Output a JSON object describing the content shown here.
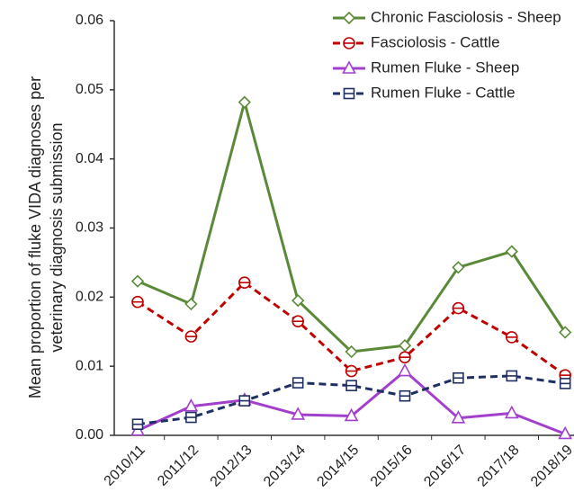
{
  "chart_data": {
    "type": "line",
    "ylabel": [
      "Mean proportion  of fluke VIDA diagnoses per",
      "veterinary diagnosis submission"
    ],
    "categories": [
      "2010/11",
      "2011/12",
      "2012/13",
      "2013/14",
      "2014/15",
      "2015/16",
      "2016/17",
      "2017/18",
      "2018/19"
    ],
    "series": [
      {
        "name": "Chronic Fasciolosis - Sheep",
        "color": "#5a8a37",
        "marker": "diamond",
        "dashed": false,
        "values": [
          0.0223,
          0.019,
          0.0482,
          0.0195,
          0.0121,
          0.013,
          0.0243,
          0.0266,
          0.0149
        ]
      },
      {
        "name": "Fasciolosis - Cattle",
        "color": "#c00000",
        "marker": "circle",
        "dashed": true,
        "values": [
          0.0193,
          0.0143,
          0.0221,
          0.0165,
          0.0093,
          0.0113,
          0.0184,
          0.0142,
          0.0087
        ]
      },
      {
        "name": "Rumen Fluke - Sheep",
        "color": "#a23fcc",
        "marker": "triangle",
        "dashed": false,
        "values": [
          0.0007,
          0.0042,
          0.0051,
          0.003,
          0.0028,
          0.0093,
          0.0025,
          0.0032,
          0.0002
        ]
      },
      {
        "name": "Rumen Fluke - Cattle",
        "color": "#1f2f63",
        "marker": "square",
        "dashed": true,
        "values": [
          0.0016,
          0.0026,
          0.005,
          0.0076,
          0.0072,
          0.0057,
          0.0083,
          0.0086,
          0.0075
        ]
      }
    ],
    "ylim": [
      0,
      0.06
    ],
    "yticks": [
      {
        "value": 0,
        "label": "0.00"
      },
      0.01,
      0.02,
      0.03,
      0.04,
      0.05,
      0.06
    ],
    "legend": "upper right"
  }
}
